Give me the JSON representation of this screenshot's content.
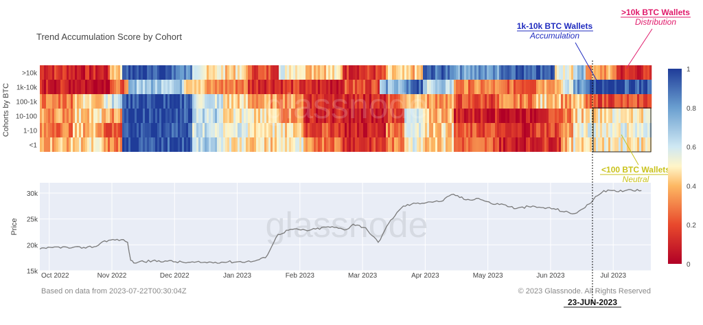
{
  "chart_data": [
    {
      "type": "heatmap",
      "title": "Trend Accumulation Score by Cohort",
      "ylabel": "Cohorts by BTC",
      "rows": [
        ">10k",
        "1k-10k",
        "100-1k",
        "10-100",
        "1-10",
        "<1"
      ],
      "colorscale": {
        "min": 0,
        "max": 1,
        "ticks": [
          "0",
          "0.2",
          "0.4",
          "0.6",
          "0.8",
          "1"
        ],
        "stops": [
          [
            0.0,
            "#b10026"
          ],
          [
            0.2,
            "#e8492c"
          ],
          [
            0.4,
            "#fdb863"
          ],
          [
            0.5,
            "#fff5c8"
          ],
          [
            0.6,
            "#cfe8f3"
          ],
          [
            0.8,
            "#6a9fd0"
          ],
          [
            1.0,
            "#1f3c99"
          ]
        ]
      },
      "months": [
        "Oct 2022",
        "Nov 2022",
        "Dec 2022",
        "Jan 2023",
        "Feb 2023",
        "Mar 2023",
        "Apr 2023",
        "May 2023",
        "Jun 2023",
        "Jul 2023"
      ],
      "segments": [
        [
          [
            0,
            0.15
          ],
          [
            0.5,
            0.1
          ],
          [
            1.1,
            0.45
          ],
          [
            1.3,
            0.97
          ],
          [
            2.1,
            0.85
          ],
          [
            2.4,
            0.5
          ],
          [
            2.9,
            0.45
          ],
          [
            3.3,
            0.2
          ],
          [
            3.8,
            0.55
          ],
          [
            4.2,
            0.45
          ],
          [
            4.8,
            0.15
          ],
          [
            5.5,
            0.4
          ],
          [
            6.1,
            0.9
          ],
          [
            6.6,
            0.8
          ],
          [
            7.3,
            0.95
          ],
          [
            8.2,
            0.5
          ],
          [
            8.5,
            0.7
          ],
          [
            8.7,
            0.35
          ],
          [
            9.2,
            0.12
          ]
        ],
        [
          [
            0,
            0.1
          ],
          [
            0.7,
            0.05
          ],
          [
            1.1,
            0.25
          ],
          [
            1.4,
            0.7
          ],
          [
            2.3,
            0.5
          ],
          [
            2.6,
            0.3
          ],
          [
            3.3,
            0.15
          ],
          [
            4.2,
            0.1
          ],
          [
            4.8,
            0.2
          ],
          [
            5.4,
            0.75
          ],
          [
            5.8,
            0.9
          ],
          [
            6.1,
            0.65
          ],
          [
            6.6,
            0.3
          ],
          [
            7.3,
            0.25
          ],
          [
            7.9,
            0.4
          ],
          [
            8.3,
            0.55
          ],
          [
            8.5,
            0.8
          ],
          [
            8.7,
            0.95
          ]
        ],
        [
          [
            0,
            0.3
          ],
          [
            0.5,
            0.45
          ],
          [
            1.0,
            0.6
          ],
          [
            1.3,
            0.97
          ],
          [
            2.0,
            0.95
          ],
          [
            2.4,
            0.6
          ],
          [
            2.9,
            0.45
          ],
          [
            3.3,
            0.35
          ],
          [
            4.2,
            0.15
          ],
          [
            4.8,
            0.1
          ],
          [
            5.5,
            0.25
          ],
          [
            5.8,
            0.45
          ],
          [
            6.1,
            0.35
          ],
          [
            6.6,
            0.2
          ],
          [
            7.3,
            0.3
          ],
          [
            7.9,
            0.45
          ],
          [
            8.3,
            0.35
          ],
          [
            8.5,
            0.4
          ],
          [
            8.7,
            0.2
          ]
        ],
        [
          [
            0,
            0.35
          ],
          [
            0.5,
            0.45
          ],
          [
            1.0,
            0.35
          ],
          [
            1.3,
            0.97
          ],
          [
            2.0,
            0.97
          ],
          [
            2.4,
            0.65
          ],
          [
            2.9,
            0.5
          ],
          [
            3.3,
            0.45
          ],
          [
            3.8,
            0.35
          ],
          [
            4.2,
            0.1
          ],
          [
            4.8,
            0.05
          ],
          [
            5.5,
            0.2
          ],
          [
            5.8,
            0.55
          ],
          [
            6.1,
            0.4
          ],
          [
            6.6,
            0.1
          ],
          [
            7.3,
            0.05
          ],
          [
            7.9,
            0.15
          ],
          [
            8.3,
            0.3
          ],
          [
            8.5,
            0.45
          ],
          [
            8.7,
            0.5
          ]
        ],
        [
          [
            0,
            0.3
          ],
          [
            0.5,
            0.4
          ],
          [
            1.0,
            0.2
          ],
          [
            1.3,
            0.97
          ],
          [
            2.0,
            0.95
          ],
          [
            2.4,
            0.6
          ],
          [
            2.9,
            0.55
          ],
          [
            3.3,
            0.5
          ],
          [
            3.8,
            0.45
          ],
          [
            4.2,
            0.2
          ],
          [
            4.8,
            0.1
          ],
          [
            5.5,
            0.3
          ],
          [
            5.8,
            0.6
          ],
          [
            6.1,
            0.45
          ],
          [
            6.6,
            0.2
          ],
          [
            7.3,
            0.1
          ],
          [
            7.9,
            0.2
          ],
          [
            8.3,
            0.35
          ],
          [
            8.5,
            0.5
          ],
          [
            8.7,
            0.55
          ]
        ],
        [
          [
            0,
            0.4
          ],
          [
            0.5,
            0.45
          ],
          [
            1.0,
            0.3
          ],
          [
            1.3,
            0.97
          ],
          [
            2.0,
            0.95
          ],
          [
            2.4,
            0.65
          ],
          [
            2.9,
            0.5
          ],
          [
            3.3,
            0.45
          ],
          [
            3.8,
            0.5
          ],
          [
            4.2,
            0.3
          ],
          [
            4.8,
            0.15
          ],
          [
            5.5,
            0.3
          ],
          [
            5.8,
            0.55
          ],
          [
            6.1,
            0.45
          ],
          [
            6.6,
            0.25
          ],
          [
            7.3,
            0.1
          ],
          [
            7.9,
            0.15
          ],
          [
            8.3,
            0.4
          ],
          [
            8.5,
            0.5
          ],
          [
            8.7,
            0.5
          ]
        ]
      ]
    },
    {
      "type": "line",
      "ylabel": "Price",
      "yticks": [
        {
          "label": "15k",
          "value": 15000
        },
        {
          "label": "20k",
          "value": 20000
        },
        {
          "label": "25k",
          "value": 25000
        },
        {
          "label": "30k",
          "value": 30000
        }
      ],
      "ylim": [
        15000,
        32000
      ],
      "xticks": [
        "Oct 2022",
        "Nov 2022",
        "Dec 2022",
        "Jan 2023",
        "Feb 2023",
        "Mar 2023",
        "Apr 2023",
        "May 2023",
        "Jun 2023",
        "Jul 2023"
      ],
      "series": [
        {
          "x": [
            0,
            0.1,
            0.3,
            0.5,
            0.7,
            0.9,
            1.0,
            1.1,
            1.3,
            1.4,
            1.45,
            1.5,
            1.6,
            2.0,
            2.3,
            2.6,
            3.0,
            3.4,
            3.6,
            3.8,
            4.0,
            4.3,
            4.6,
            4.9,
            5.0,
            5.2,
            5.3,
            5.4,
            5.6,
            5.8,
            6.0,
            6.2,
            6.4,
            6.6,
            6.8,
            7.0,
            7.2,
            7.4,
            7.6,
            7.8,
            8.0,
            8.2,
            8.5,
            8.6,
            8.7,
            8.9,
            9.0,
            9.2,
            9.4,
            9.6
          ],
          "y": [
            19200,
            19300,
            19600,
            19400,
            19500,
            19700,
            20600,
            20900,
            21000,
            20500,
            17000,
            16500,
            16800,
            16900,
            16600,
            16600,
            16700,
            16800,
            17500,
            22000,
            23000,
            22800,
            23500,
            23000,
            24000,
            23300,
            21800,
            20500,
            24800,
            27500,
            28000,
            28300,
            28400,
            29800,
            28700,
            29000,
            28000,
            27800,
            27000,
            27400,
            27200,
            27000,
            26000,
            26500,
            27200,
            29500,
            30500,
            30300,
            30700,
            30500
          ]
        }
      ]
    }
  ],
  "texts": {
    "title": "Trend Accumulation Score by Cohort",
    "heat_ylabel": "Cohorts by BTC",
    "price_ylabel": "Price",
    "footer_left": "Based on data from 2023-07-22T00:30:04Z",
    "footer_right": "© 2023 Glassnode. All Rights Reserved",
    "watermark": "glassnode",
    "date_marker": "23-JUN-2023"
  },
  "annotations": [
    {
      "title": "1k-10k BTC Wallets",
      "subtitle": "Accumulation",
      "title_color": "#1f2bbf",
      "subtitle_color": "#1f2bbf"
    },
    {
      "title": ">10k BTC Wallets",
      "subtitle": "Distribution",
      "title_color": "#e0196a",
      "subtitle_color": "#e0196a"
    },
    {
      "title": "<100 BTC Wallets",
      "subtitle": "Neutral",
      "title_color": "#c9c21a",
      "subtitle_color": "#c9c21a"
    }
  ],
  "colors": {
    "plot_bg": "#e9edf6",
    "price_line": "#7a7a7a",
    "axis_text": "#444444"
  }
}
